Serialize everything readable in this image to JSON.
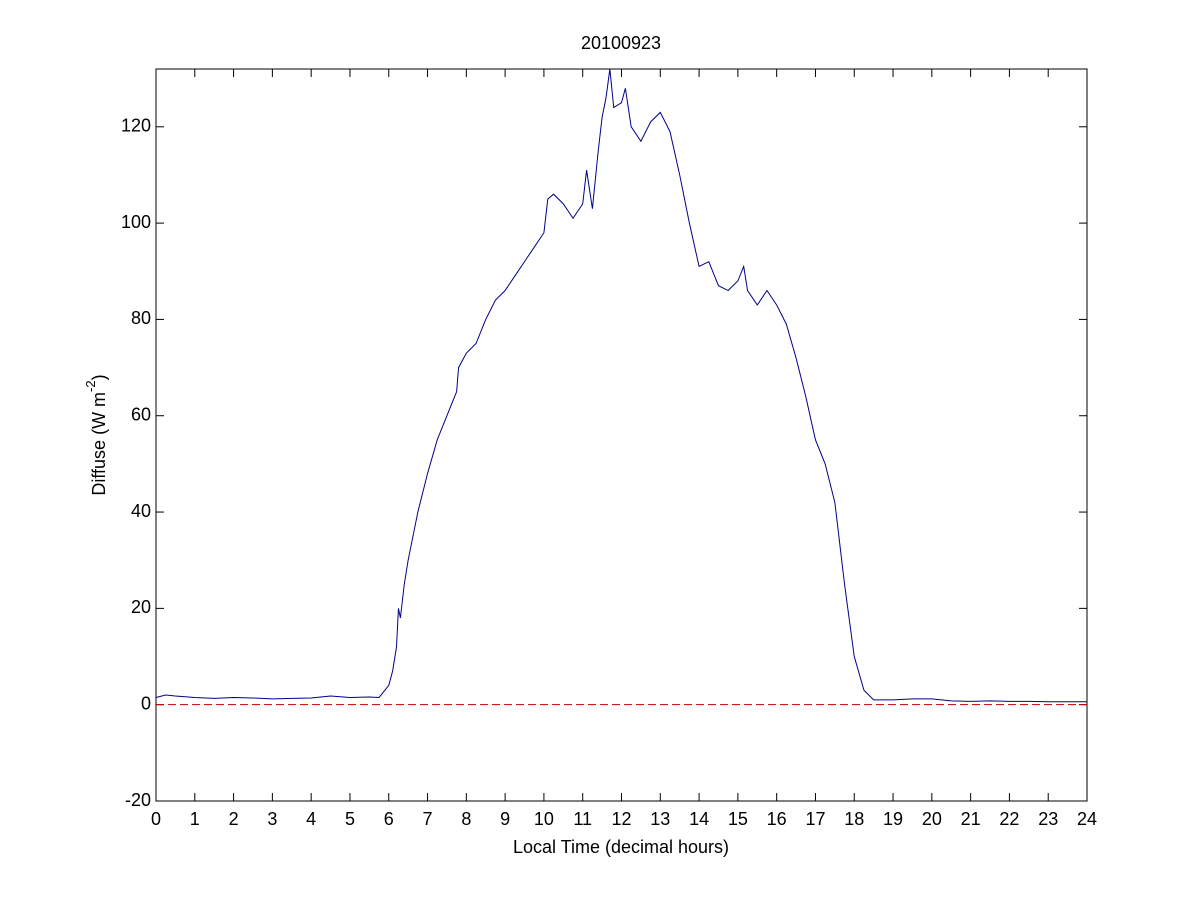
{
  "chart_data": {
    "type": "line",
    "title": "20100923",
    "xlabel": "Local Time (decimal hours)",
    "ylabel": {
      "text": "Diffuse (W m",
      "sup": "-2",
      "tail": ")"
    },
    "xlim": [
      0,
      24
    ],
    "ylim": [
      -20,
      132
    ],
    "xticks": [
      0,
      1,
      2,
      3,
      4,
      5,
      6,
      7,
      8,
      9,
      10,
      11,
      12,
      13,
      14,
      15,
      16,
      17,
      18,
      19,
      20,
      21,
      22,
      23,
      24
    ],
    "yticks": [
      -20,
      0,
      20,
      40,
      60,
      80,
      100,
      120
    ],
    "reference_line": {
      "value": 0,
      "color": "#cc0000"
    },
    "series": [
      {
        "color": "#00008b",
        "x": [
          0,
          0.25,
          0.5,
          1,
          1.5,
          2,
          2.5,
          3,
          3.5,
          4,
          4.5,
          5,
          5.5,
          5.75,
          6,
          6.1,
          6.2,
          6.25,
          6.3,
          6.4,
          6.5,
          6.75,
          7,
          7.25,
          7.5,
          7.75,
          7.8,
          8,
          8.25,
          8.5,
          8.75,
          9,
          9.25,
          9.5,
          9.75,
          10,
          10.1,
          10.25,
          10.5,
          10.75,
          11,
          11.1,
          11.25,
          11.4,
          11.5,
          11.6,
          11.7,
          11.8,
          12,
          12.1,
          12.25,
          12.5,
          12.75,
          13,
          13.25,
          13.5,
          13.75,
          14,
          14.25,
          14.5,
          14.75,
          15,
          15.15,
          15.25,
          15.5,
          15.75,
          16,
          16.25,
          16.5,
          16.75,
          17,
          17.25,
          17.5,
          17.75,
          18,
          18.25,
          18.5,
          19,
          19.5,
          20,
          20.5,
          21,
          21.5,
          22,
          22.5,
          23,
          23.5,
          24
        ],
        "values": [
          1.5,
          2,
          1.8,
          1.5,
          1.3,
          1.5,
          1.4,
          1.2,
          1.3,
          1.4,
          1.8,
          1.5,
          1.6,
          1.5,
          4,
          7,
          12,
          20,
          18,
          25,
          30,
          40,
          48,
          55,
          60,
          65,
          70,
          73,
          75,
          80,
          84,
          86,
          89,
          92,
          95,
          98,
          105,
          106,
          104,
          101,
          104,
          111,
          103,
          115,
          122,
          126,
          132,
          124,
          125,
          128,
          120,
          117,
          121,
          123,
          119,
          110,
          100,
          91,
          92,
          87,
          86,
          88,
          91,
          86,
          83,
          86,
          83,
          79,
          72,
          64,
          55,
          50,
          42,
          25,
          10,
          3,
          1,
          1,
          1.2,
          1.2,
          0.8,
          0.7,
          0.8,
          0.7,
          0.7,
          0.6,
          0.6,
          0.6
        ]
      }
    ]
  }
}
